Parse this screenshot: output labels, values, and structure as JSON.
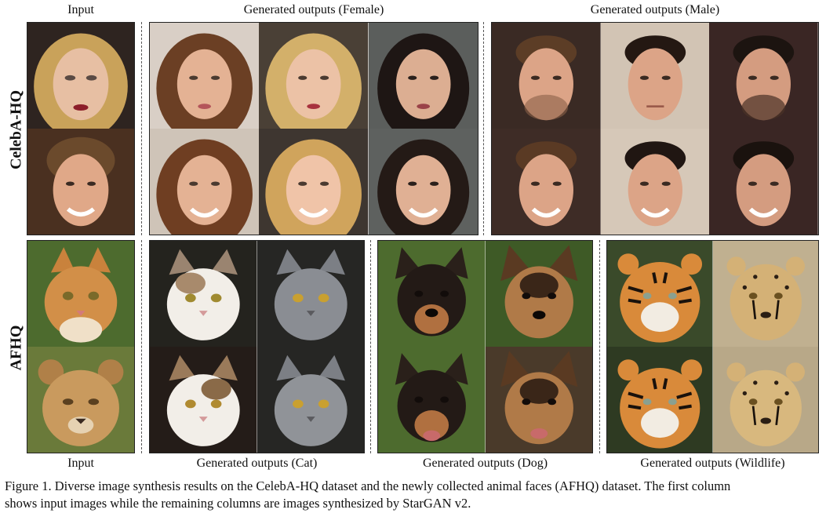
{
  "headers": {
    "input_top": "Input",
    "female": "Generated outputs (Female)",
    "male": "Generated outputs (Male)",
    "input_bottom": "Input",
    "cat": "Generated outputs (Cat)",
    "dog": "Generated outputs (Dog)",
    "wildlife": "Generated outputs (Wildlife)"
  },
  "rows": {
    "celeba": "CelebA-HQ",
    "afhq": "AFHQ"
  },
  "caption": {
    "line1": "Figure 1. Diverse image synthesis results on the CelebA-HQ dataset and the newly collected animal faces (AFHQ) dataset. The first column",
    "line2": "shows input images while the remaining columns are images synthesized by StarGAN v2."
  },
  "images": {
    "celeba_input": [
      "face-blonde-woman",
      "face-young-man"
    ],
    "female": [
      "face-brunette-woman",
      "face-blonde-woman",
      "face-darkhair-woman",
      "face-brunette-smiling-woman",
      "face-blonde-smiling-woman",
      "face-darkhair-smiling-woman"
    ],
    "male": [
      "face-man-beard",
      "face-man-dark-hair",
      "face-man-beard-dark",
      "face-man-smiling",
      "face-man-smiling",
      "face-man-smiling-dark"
    ],
    "afhq_input": [
      "ginger-kitten",
      "lion-cub"
    ],
    "cat": [
      "calico-cat",
      "gray-cat",
      "calico-cat",
      "gray-cat"
    ],
    "dog": [
      "black-tan-dog",
      "shepherd-dog",
      "black-tan-dog",
      "shepherd-dog"
    ],
    "wildlife": [
      "tiger",
      "cheetah",
      "tiger",
      "cheetah"
    ]
  },
  "palette": {
    "skin": "#e8b99a",
    "bg_dark": "#2b211c",
    "bg_light": "#d8cfc4",
    "ginger": "#c9823c",
    "gray_cat": "#8a8d93",
    "grass": "#4d6b2e",
    "tiger": "#d98a3a",
    "cheetah": "#d4b176"
  }
}
